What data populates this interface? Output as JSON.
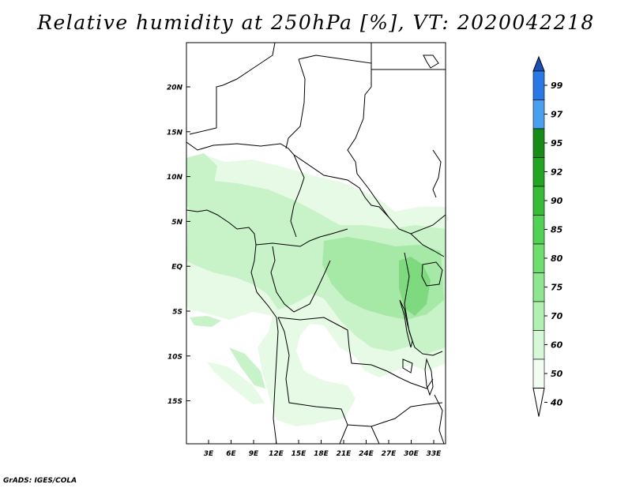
{
  "title": "Relative humidity at 250hPa [%], VT: 2020042218",
  "credit": "GrADS: IGES/COLA",
  "map": {
    "lat_labels": [
      "20N",
      "15N",
      "10N",
      "5N",
      "EQ",
      "5S",
      "10S",
      "15S"
    ],
    "lon_labels": [
      "3E",
      "6E",
      "9E",
      "12E",
      "15E",
      "18E",
      "21E",
      "24E",
      "27E",
      "30E",
      "33E"
    ],
    "humidity_fill_colors": [
      "#e6fae6",
      "#c8f2c8",
      "#a6e8a6",
      "#7fda7f"
    ],
    "coastline_color": "#000000"
  },
  "colorbar": {
    "levels": [
      "99",
      "97",
      "95",
      "92",
      "90",
      "85",
      "80",
      "75",
      "70",
      "60",
      "50",
      "40"
    ],
    "colors": [
      "#1e60d0",
      "#2a78e6",
      "#4aa0f0",
      "#168c16",
      "#22a622",
      "#36bc36",
      "#52d252",
      "#6ede6e",
      "#8ee68e",
      "#b0f0b0",
      "#d6f8d6",
      "#f2fdf2"
    ],
    "top_arrow_color": "#1a4fb8",
    "bottom_arrow_color": "#ffffff"
  }
}
